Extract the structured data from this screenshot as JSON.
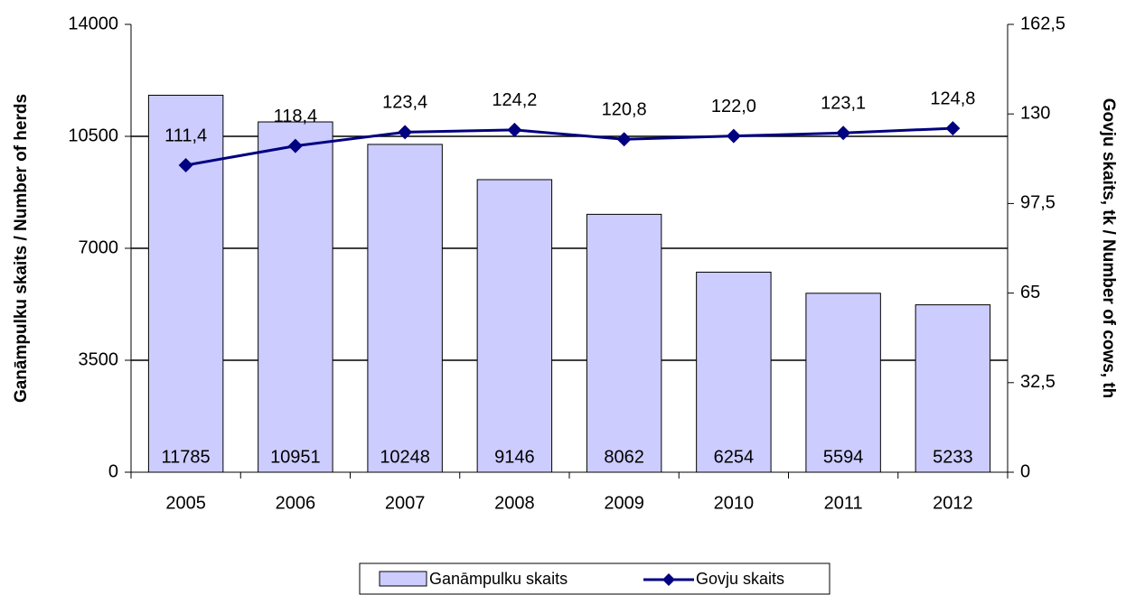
{
  "chart_data": {
    "type": "bar",
    "categories": [
      "2005",
      "2006",
      "2007",
      "2008",
      "2009",
      "2010",
      "2011",
      "2012"
    ],
    "series": [
      {
        "name": "Ganāmpulku skaits",
        "type": "bar",
        "color": "#ccccff",
        "values": [
          11785,
          10951,
          10248,
          9146,
          8062,
          6254,
          5594,
          5233
        ]
      },
      {
        "name": "Govju skaits",
        "type": "line",
        "axis": "y2",
        "color": "#000080",
        "values": [
          111.4,
          118.4,
          123.4,
          124.2,
          120.8,
          122.0,
          123.1,
          124.8
        ],
        "value_labels": [
          "111,4",
          "118,4",
          "123,4",
          "124,2",
          "120,8",
          "122,0",
          "123,1",
          "124,8"
        ]
      }
    ],
    "ylabel": "Ganāmpulku skaits / Number of herds",
    "y2label": "Govju skaits, tk / Number of cows, th",
    "ylim": [
      0,
      14000
    ],
    "yticks": [
      0,
      3500,
      7000,
      10500,
      14000
    ],
    "y2lim": [
      0,
      162.5
    ],
    "y2ticks": [
      0,
      {
        "value": 32.5,
        "label": "32,5"
      },
      65,
      {
        "value": 97.5,
        "label": "97,5"
      },
      130,
      {
        "value": 162.5,
        "label": "162,5"
      }
    ],
    "grid": true,
    "legend": "bottom"
  }
}
